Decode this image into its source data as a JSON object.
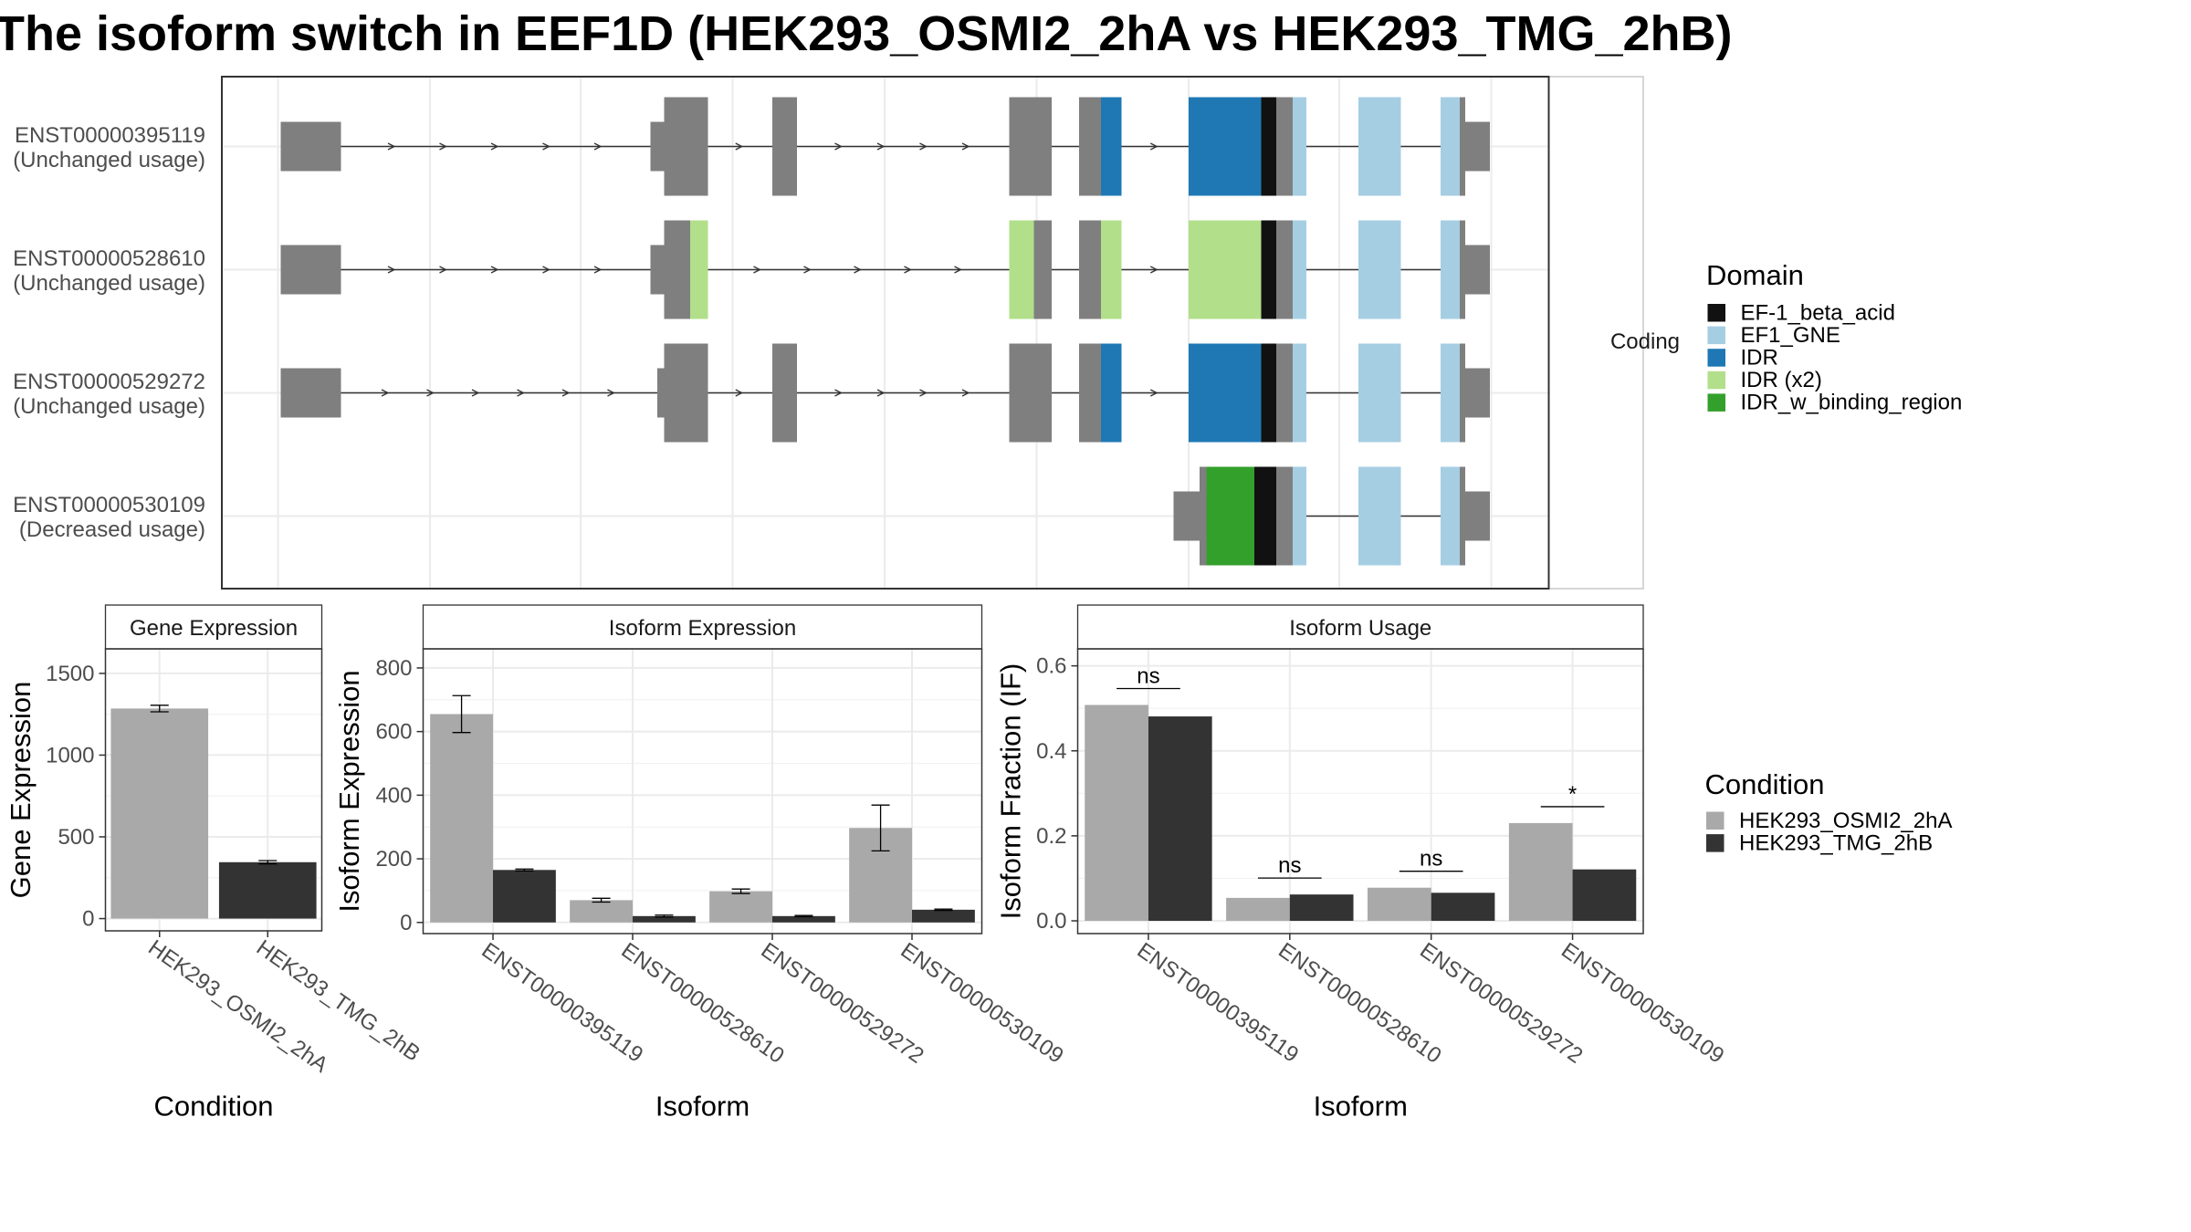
{
  "title": "The isoform switch in EEF1D (HEK293_OSMI2_2hA vs HEK293_TMG_2hB)",
  "colors": {
    "grey": "#7f7f7f",
    "cond_a": "#a9a9a9",
    "cond_b": "#333333",
    "EF-1_beta_acid": "#111111",
    "EF1_GNE": "#a6cee3",
    "IDR": "#1f78b4",
    "IDR (x2)": "#b2df8a",
    "IDR_w_binding_region": "#33a02c"
  },
  "transcripts": {
    "strip_label": "Coding",
    "rows": [
      {
        "id": "ENST00000395119",
        "usage": "(Unchanged usage)",
        "exons": [
          {
            "s": 205,
            "e": 249,
            "t": "utr"
          },
          {
            "s": 475,
            "e": 485,
            "t": "utr"
          },
          {
            "s": 485,
            "e": 517,
            "t": "cds"
          },
          {
            "s": 564,
            "e": 582,
            "t": "cds"
          },
          {
            "s": 737,
            "e": 768,
            "t": "cds"
          },
          {
            "s": 788,
            "e": 804,
            "t": "cds"
          },
          {
            "s": 804,
            "e": 819,
            "t": "cds",
            "d": "IDR"
          },
          {
            "s": 868,
            "e": 921,
            "t": "cds",
            "d": "IDR"
          },
          {
            "s": 921,
            "e": 932,
            "t": "cds",
            "d": "EF-1_beta_acid"
          },
          {
            "s": 932,
            "e": 944,
            "t": "cds"
          },
          {
            "s": 944,
            "e": 954,
            "t": "cds",
            "d": "EF1_GNE"
          },
          {
            "s": 992,
            "e": 1023,
            "t": "cds",
            "d": "EF1_GNE"
          },
          {
            "s": 1052,
            "e": 1066,
            "t": "cds",
            "d": "EF1_GNE"
          },
          {
            "s": 1066,
            "e": 1070,
            "t": "cds"
          },
          {
            "s": 1070,
            "e": 1088,
            "t": "utr"
          }
        ]
      },
      {
        "id": "ENST00000528610",
        "usage": "(Unchanged usage)",
        "exons": [
          {
            "s": 205,
            "e": 249,
            "t": "utr"
          },
          {
            "s": 475,
            "e": 485,
            "t": "utr"
          },
          {
            "s": 485,
            "e": 504,
            "t": "cds"
          },
          {
            "s": 504,
            "e": 517,
            "t": "cds",
            "d": "IDR (x2)"
          },
          {
            "s": 737,
            "e": 755,
            "t": "cds",
            "d": "IDR (x2)"
          },
          {
            "s": 755,
            "e": 768,
            "t": "cds"
          },
          {
            "s": 788,
            "e": 804,
            "t": "cds"
          },
          {
            "s": 804,
            "e": 819,
            "t": "cds",
            "d": "IDR (x2)"
          },
          {
            "s": 868,
            "e": 921,
            "t": "cds",
            "d": "IDR (x2)"
          },
          {
            "s": 921,
            "e": 932,
            "t": "cds",
            "d": "EF-1_beta_acid"
          },
          {
            "s": 932,
            "e": 944,
            "t": "cds"
          },
          {
            "s": 944,
            "e": 954,
            "t": "cds",
            "d": "EF1_GNE"
          },
          {
            "s": 992,
            "e": 1023,
            "t": "cds",
            "d": "EF1_GNE"
          },
          {
            "s": 1052,
            "e": 1066,
            "t": "cds",
            "d": "EF1_GNE"
          },
          {
            "s": 1066,
            "e": 1070,
            "t": "cds"
          },
          {
            "s": 1070,
            "e": 1088,
            "t": "utr"
          }
        ]
      },
      {
        "id": "ENST00000529272",
        "usage": "(Unchanged usage)",
        "exons": [
          {
            "s": 205,
            "e": 249,
            "t": "utr"
          },
          {
            "s": 480,
            "e": 485,
            "t": "utr"
          },
          {
            "s": 485,
            "e": 517,
            "t": "cds"
          },
          {
            "s": 564,
            "e": 582,
            "t": "cds"
          },
          {
            "s": 737,
            "e": 768,
            "t": "cds"
          },
          {
            "s": 788,
            "e": 804,
            "t": "cds"
          },
          {
            "s": 804,
            "e": 819,
            "t": "cds",
            "d": "IDR"
          },
          {
            "s": 868,
            "e": 921,
            "t": "cds",
            "d": "IDR"
          },
          {
            "s": 921,
            "e": 932,
            "t": "cds",
            "d": "EF-1_beta_acid"
          },
          {
            "s": 932,
            "e": 944,
            "t": "cds"
          },
          {
            "s": 944,
            "e": 954,
            "t": "cds",
            "d": "EF1_GNE"
          },
          {
            "s": 992,
            "e": 1023,
            "t": "cds",
            "d": "EF1_GNE"
          },
          {
            "s": 1052,
            "e": 1066,
            "t": "cds",
            "d": "EF1_GNE"
          },
          {
            "s": 1066,
            "e": 1070,
            "t": "cds"
          },
          {
            "s": 1070,
            "e": 1088,
            "t": "utr"
          }
        ]
      },
      {
        "id": "ENST00000530109",
        "usage": "(Decreased usage)",
        "exons": [
          {
            "s": 857,
            "e": 876,
            "t": "utr"
          },
          {
            "s": 876,
            "e": 881,
            "t": "cds"
          },
          {
            "s": 881,
            "e": 916,
            "t": "cds",
            "d": "IDR_w_binding_region"
          },
          {
            "s": 916,
            "e": 932,
            "t": "cds",
            "d": "EF-1_beta_acid"
          },
          {
            "s": 932,
            "e": 944,
            "t": "cds"
          },
          {
            "s": 944,
            "e": 954,
            "t": "cds",
            "d": "EF1_GNE"
          },
          {
            "s": 992,
            "e": 1023,
            "t": "cds",
            "d": "EF1_GNE"
          },
          {
            "s": 1052,
            "e": 1066,
            "t": "cds",
            "d": "EF1_GNE"
          },
          {
            "s": 1066,
            "e": 1070,
            "t": "cds"
          },
          {
            "s": 1070,
            "e": 1088,
            "t": "utr"
          }
        ]
      }
    ]
  },
  "legends": {
    "domain": {
      "title": "Domain",
      "items": [
        "EF-1_beta_acid",
        "EF1_GNE",
        "IDR",
        "IDR (x2)",
        "IDR_w_binding_region"
      ]
    },
    "condition": {
      "title": "Condition",
      "items": [
        "HEK293_OSMI2_2hA",
        "HEK293_TMG_2hB"
      ]
    }
  },
  "chart_data": [
    {
      "type": "bar",
      "title": "Gene Expression",
      "xlabel": "Condition",
      "ylabel": "Gene Expression",
      "categories": [
        "HEK293_OSMI2_2hA",
        "HEK293_TMG_2hB"
      ],
      "values": [
        1285,
        345
      ],
      "errors": [
        20,
        10
      ],
      "ylim": [
        -75,
        1650
      ],
      "yticks": [
        0,
        500,
        1000,
        1500
      ]
    },
    {
      "type": "bar",
      "title": "Isoform Expression",
      "xlabel": "Isoform",
      "ylabel": "Isoform Expression",
      "categories": [
        "ENST00000395119",
        "ENST00000528610",
        "ENST00000529272",
        "ENST00000530109"
      ],
      "series": [
        {
          "name": "HEK293_OSMI2_2hA",
          "values": [
            655,
            70,
            98,
            297
          ],
          "errors": [
            58,
            6,
            7,
            72
          ]
        },
        {
          "name": "HEK293_TMG_2hB",
          "values": [
            165,
            20,
            20,
            40
          ],
          "errors": [
            3,
            3,
            2,
            2
          ]
        }
      ],
      "ylim": [
        -35,
        860
      ],
      "yticks": [
        0,
        200,
        400,
        600,
        800
      ]
    },
    {
      "type": "bar",
      "title": "Isoform Usage",
      "xlabel": "Isoform",
      "ylabel": "Isoform Fraction (IF)",
      "categories": [
        "ENST00000395119",
        "ENST00000528610",
        "ENST00000529272",
        "ENST00000530109"
      ],
      "series": [
        {
          "name": "HEK293_OSMI2_2hA",
          "values": [
            0.508,
            0.054,
            0.078,
            0.23
          ]
        },
        {
          "name": "HEK293_TMG_2hB",
          "values": [
            0.481,
            0.062,
            0.066,
            0.121
          ]
        }
      ],
      "significance": [
        "ns",
        "ns",
        "ns",
        "*"
      ],
      "ylim": [
        -0.03,
        0.64
      ],
      "yticks": [
        "0.0",
        "0.2",
        "0.4",
        "0.6"
      ]
    }
  ]
}
